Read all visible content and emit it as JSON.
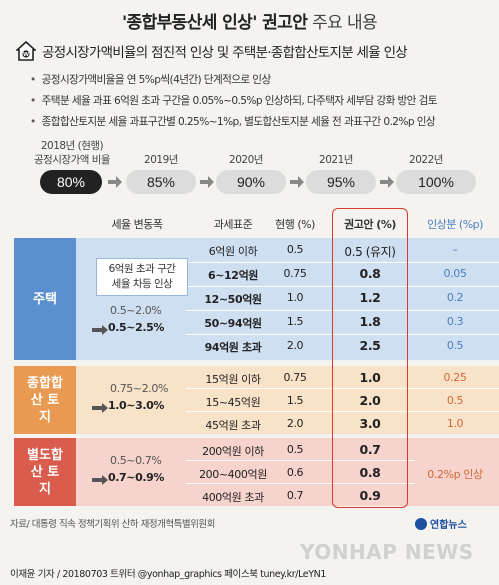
{
  "title": {
    "main": "'종합부동산세 인상' 권고안",
    "sub": "주요 내용"
  },
  "section_heading": "공정시장가액비율의 점진적 인상 및 주택분·종합합산토지분 세율 인상",
  "bullets": [
    "공정시장가액비율을 연 5%p씩(4년간) 단계적으로 인상",
    "주택분 세율 과표 6억원 초과 구간을 0.05%~0.5%p 인상하되, 다주택자 세부담 강화 방안 검토",
    "종합합산토지분 세율 과표구간별 0.25%~1%p, 별도합산토지분 세율 전 과표구간 0.2%p 인상"
  ],
  "timeline": {
    "labels": [
      "2018년 (현행)",
      "공정시장가액 비율",
      "2019년",
      "2020년",
      "2021년",
      "2022년"
    ],
    "values": [
      "80%",
      "85%",
      "90%",
      "95%",
      "100%"
    ]
  },
  "table": {
    "headers": [
      "세율 변동폭",
      "과세표준",
      "현행 (%)",
      "권고안 (%)",
      "인상분 (%p)"
    ],
    "groups": [
      {
        "name": "주택",
        "color": "#5b8fcf",
        "band": "#cfdff2",
        "note": [
          "6억원 초과 구간",
          "세율 차등 인상"
        ],
        "range_from": "0.5~2.0%",
        "range_to": "0.5~2.5%",
        "rows": [
          {
            "base": "6억원 이하",
            "current": "0.5",
            "proposed": "0.5 (유지)",
            "incr": "–",
            "bold": false
          },
          {
            "base": "6~12억원",
            "current": "0.75",
            "proposed": "0.8",
            "incr": "0.05",
            "bold": true
          },
          {
            "base": "12~50억원",
            "current": "1.0",
            "proposed": "1.2",
            "incr": "0.2",
            "bold": true
          },
          {
            "base": "50~94억원",
            "current": "1.5",
            "proposed": "1.8",
            "incr": "0.3",
            "bold": true
          },
          {
            "base": "94억원 초과",
            "current": "2.0",
            "proposed": "2.5",
            "incr": "0.5",
            "bold": true
          }
        ]
      },
      {
        "name": "종합합산 토지",
        "color": "#e99a52",
        "band": "#f8e2c8",
        "range_from": "0.75~2.0%",
        "range_to": "1.0~3.0%",
        "rows": [
          {
            "base": "15억원 이하",
            "current": "0.75",
            "proposed": "1.0",
            "incr": "0.25",
            "bold": false
          },
          {
            "base": "15~45억원",
            "current": "1.5",
            "proposed": "2.0",
            "incr": "0.5",
            "bold": false
          },
          {
            "base": "45억원 초과",
            "current": "2.0",
            "proposed": "3.0",
            "incr": "1.0",
            "bold": false
          }
        ]
      },
      {
        "name": "별도합산 토지",
        "color": "#d95c4c",
        "band": "#f6d3cc",
        "range_from": "0.5~0.7%",
        "range_to": "0.7~0.9%",
        "merged_incr": "0.2%p 인상",
        "rows": [
          {
            "base": "200억원 이하",
            "current": "0.5",
            "proposed": "0.7",
            "bold": false
          },
          {
            "base": "200~400억원",
            "current": "0.6",
            "proposed": "0.8",
            "bold": false
          },
          {
            "base": "400억원 초과",
            "current": "0.7",
            "proposed": "0.9",
            "bold": false
          }
        ]
      }
    ]
  },
  "source": "자료/ 대통령 직속 정책기획위 산하 재정개혁특별위원회",
  "credit": "이재윤 기자 / 20180703  트위터 @yonhap_graphics  페이스북 tuney.kr/LeYN1",
  "logo": "연합뉴스",
  "watermark": "YONHAP NEWS",
  "colors": {
    "highlight": "#d93a2b",
    "incr_blue": "#4a7fc1",
    "incr_orange": "#d06a38"
  }
}
